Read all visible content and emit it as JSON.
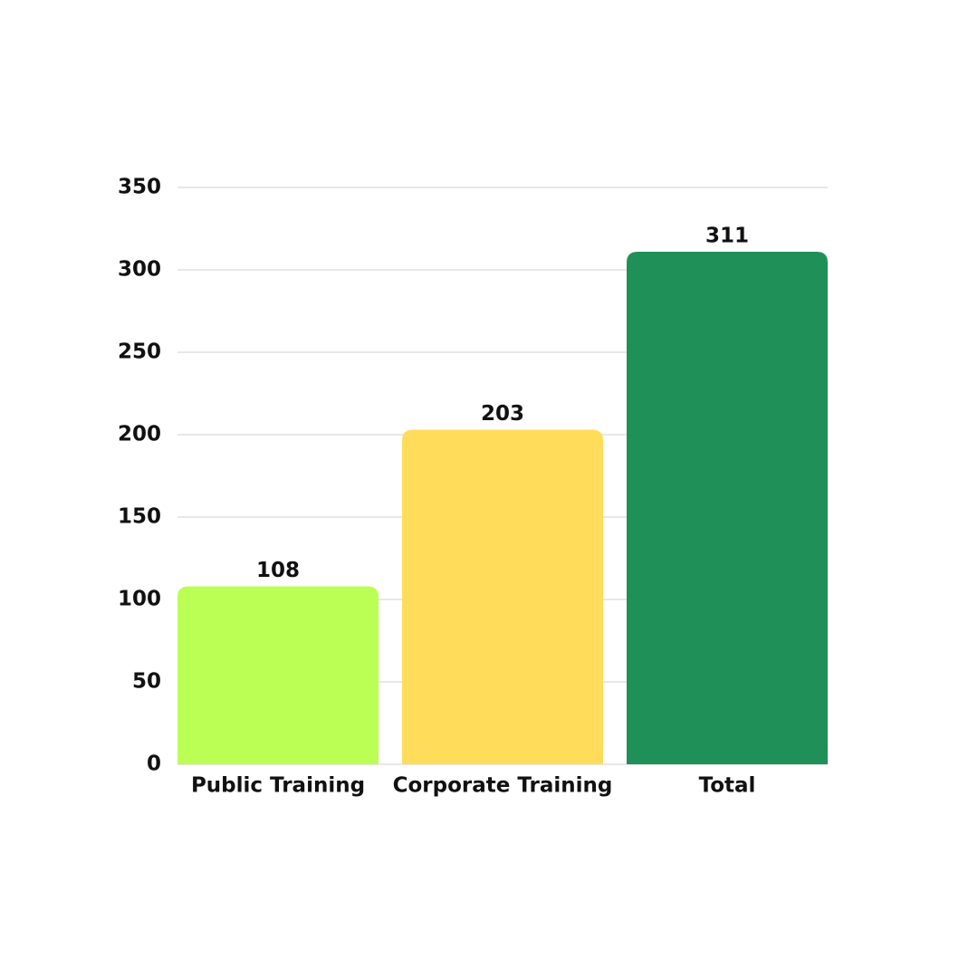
{
  "chart_data": {
    "type": "bar",
    "categories": [
      "Public Training",
      "Corporate Training",
      "Total"
    ],
    "values": [
      108,
      203,
      311
    ],
    "colors": [
      "#bbff55",
      "#ffdd5b",
      "#209059"
    ],
    "ylim": [
      0,
      350
    ],
    "yticks": [
      0,
      50,
      100,
      150,
      200,
      250,
      300,
      350
    ],
    "grid": true
  }
}
